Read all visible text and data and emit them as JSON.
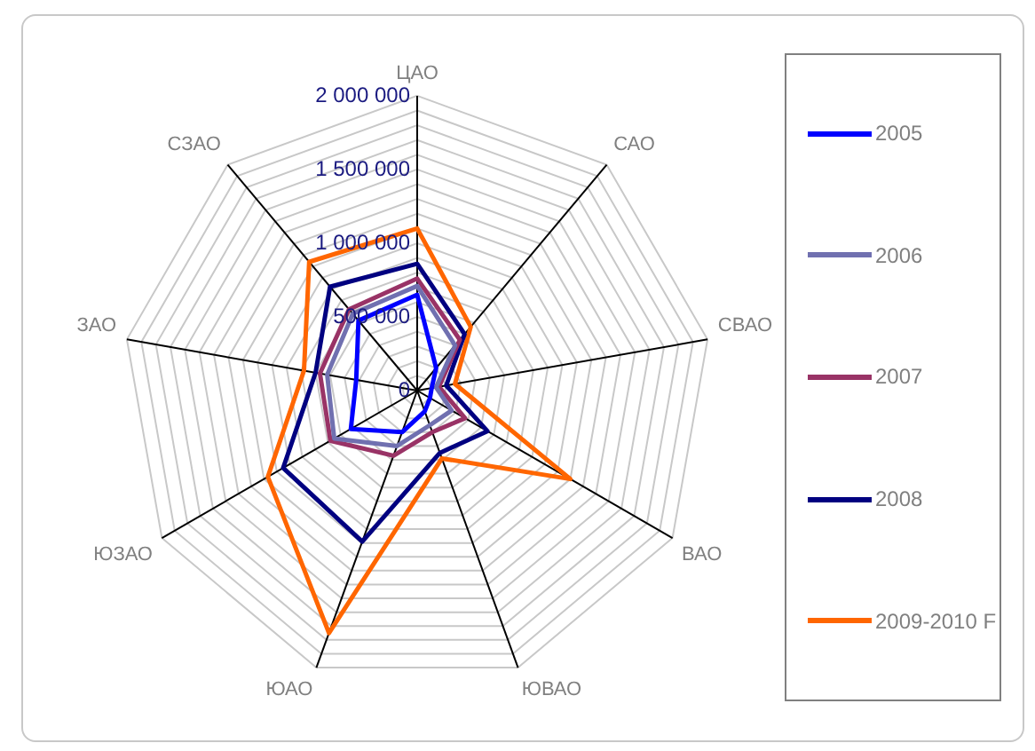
{
  "chart_data": {
    "type": "radar",
    "categories": [
      "ЦАО",
      "САО",
      "СВАО",
      "ВАО",
      "ЮВАО",
      "ЮАО",
      "ЮЗАО",
      "ЗАО",
      "СЗАО"
    ],
    "series": [
      {
        "name": "2005",
        "color": "#0000ff",
        "values": [
          650000,
          200000,
          100000,
          100000,
          150000,
          300000,
          520000,
          420000,
          620000
        ]
      },
      {
        "name": "2006",
        "color": "#7070b0",
        "values": [
          710000,
          400000,
          130000,
          270000,
          250000,
          400000,
          650000,
          620000,
          680000
        ]
      },
      {
        "name": "2007",
        "color": "#993366",
        "values": [
          760000,
          450000,
          150000,
          375000,
          300000,
          470000,
          680000,
          670000,
          720000
        ]
      },
      {
        "name": "2008",
        "color": "#000080",
        "values": [
          860000,
          500000,
          200000,
          550000,
          450000,
          1090000,
          1050000,
          700000,
          920000
        ]
      },
      {
        "name": "2009-2010 F",
        "color": "#ff6600",
        "values": [
          1100000,
          565000,
          260000,
          1200000,
          490000,
          1750000,
          1170000,
          780000,
          1140000
        ]
      }
    ],
    "ylim": [
      0,
      2000000
    ],
    "yticks": [
      0,
      {
        "value": 500000,
        "label": "500 000"
      },
      {
        "value": 1000000,
        "label": "1 000 000"
      },
      {
        "value": 1500000,
        "label": "1 500 000"
      },
      {
        "value": 2000000,
        "label": "2 000 000"
      }
    ],
    "grid": true,
    "legend": "right",
    "marker": "none",
    "line_style": "solid"
  }
}
